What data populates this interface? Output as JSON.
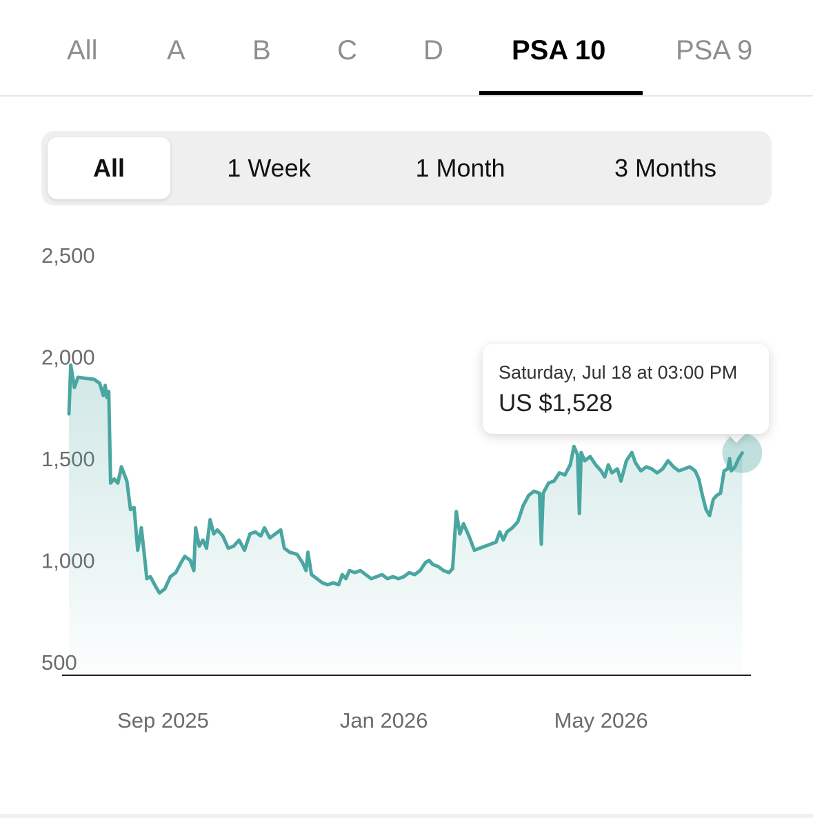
{
  "grade_tabs": [
    {
      "label": "All"
    },
    {
      "label": "A"
    },
    {
      "label": "B"
    },
    {
      "label": "C"
    },
    {
      "label": "D"
    },
    {
      "label": "PSA 10"
    },
    {
      "label": "PSA 9"
    }
  ],
  "active_grade": "PSA 10",
  "range_tabs": [
    {
      "label": "All"
    },
    {
      "label": "1 Week"
    },
    {
      "label": "1 Month"
    },
    {
      "label": "3 Months"
    }
  ],
  "active_range": "All",
  "tooltip": {
    "date": "Saturday, Jul 18 at 03:00 PM",
    "value": "US $1,528"
  },
  "colors": {
    "line": "#4aa6a0",
    "active_text": "#000000",
    "inactive_text": "#8e8e8e"
  },
  "chart_data": {
    "type": "area",
    "ylim": [
      500,
      2500
    ],
    "y_ticks": [
      "2,500",
      "2,000",
      "1,500",
      "1,000",
      "500"
    ],
    "y_tick_values": [
      2500,
      2000,
      1500,
      1000,
      500
    ],
    "x_ticks": [
      "Sep 2025",
      "Jan 2026",
      "May 2026"
    ],
    "x_tick_values": [
      "2025-09-01",
      "2026-01-01",
      "2026-05-01"
    ],
    "xlim": [
      "2025-07-11",
      "2026-07-19"
    ],
    "highlight": {
      "x": "2026-07-18",
      "y": 1528
    },
    "series": [
      {
        "points": [
          [
            "2025-07-11",
            1720
          ],
          [
            "2025-07-12",
            1960
          ],
          [
            "2025-07-14",
            1850
          ],
          [
            "2025-07-16",
            1900
          ],
          [
            "2025-07-20",
            1895
          ],
          [
            "2025-07-25",
            1890
          ],
          [
            "2025-07-28",
            1870
          ],
          [
            "2025-07-30",
            1810
          ],
          [
            "2025-07-31",
            1860
          ],
          [
            "2025-08-01",
            1800
          ],
          [
            "2025-08-02",
            1830
          ],
          [
            "2025-08-03",
            1380
          ],
          [
            "2025-08-05",
            1400
          ],
          [
            "2025-08-07",
            1380
          ],
          [
            "2025-08-09",
            1460
          ],
          [
            "2025-08-12",
            1390
          ],
          [
            "2025-08-14",
            1250
          ],
          [
            "2025-08-16",
            1260
          ],
          [
            "2025-08-18",
            1050
          ],
          [
            "2025-08-20",
            1160
          ],
          [
            "2025-08-22",
            1000
          ],
          [
            "2025-08-23",
            910
          ],
          [
            "2025-08-25",
            920
          ],
          [
            "2025-08-28",
            870
          ],
          [
            "2025-08-30",
            840
          ],
          [
            "2025-09-02",
            860
          ],
          [
            "2025-09-05",
            920
          ],
          [
            "2025-09-08",
            940
          ],
          [
            "2025-09-11",
            990
          ],
          [
            "2025-09-13",
            1020
          ],
          [
            "2025-09-16",
            1000
          ],
          [
            "2025-09-18",
            950
          ],
          [
            "2025-09-19",
            1160
          ],
          [
            "2025-09-21",
            1070
          ],
          [
            "2025-09-23",
            1100
          ],
          [
            "2025-09-25",
            1060
          ],
          [
            "2025-09-27",
            1200
          ],
          [
            "2025-09-29",
            1130
          ],
          [
            "2025-10-01",
            1150
          ],
          [
            "2025-10-04",
            1120
          ],
          [
            "2025-10-07",
            1060
          ],
          [
            "2025-10-10",
            1070
          ],
          [
            "2025-10-13",
            1100
          ],
          [
            "2025-10-16",
            1050
          ],
          [
            "2025-10-19",
            1130
          ],
          [
            "2025-10-22",
            1140
          ],
          [
            "2025-10-25",
            1120
          ],
          [
            "2025-10-27",
            1160
          ],
          [
            "2025-10-30",
            1110
          ],
          [
            "2025-11-02",
            1130
          ],
          [
            "2025-11-05",
            1150
          ],
          [
            "2025-11-07",
            1060
          ],
          [
            "2025-11-10",
            1040
          ],
          [
            "2025-11-14",
            1030
          ],
          [
            "2025-11-17",
            990
          ],
          [
            "2025-11-19",
            950
          ],
          [
            "2025-11-20",
            1040
          ],
          [
            "2025-11-22",
            930
          ],
          [
            "2025-11-25",
            910
          ],
          [
            "2025-11-28",
            890
          ],
          [
            "2025-12-01",
            880
          ],
          [
            "2025-12-04",
            890
          ],
          [
            "2025-12-07",
            880
          ],
          [
            "2025-12-09",
            930
          ],
          [
            "2025-12-11",
            910
          ],
          [
            "2025-12-13",
            950
          ],
          [
            "2025-12-16",
            940
          ],
          [
            "2025-12-19",
            950
          ],
          [
            "2025-12-22",
            930
          ],
          [
            "2025-12-25",
            910
          ],
          [
            "2025-12-28",
            920
          ],
          [
            "2025-12-31",
            930
          ],
          [
            "2026-01-03",
            910
          ],
          [
            "2026-01-06",
            920
          ],
          [
            "2026-01-09",
            910
          ],
          [
            "2026-01-12",
            920
          ],
          [
            "2026-01-15",
            940
          ],
          [
            "2026-01-18",
            930
          ],
          [
            "2026-01-21",
            950
          ],
          [
            "2026-01-24",
            990
          ],
          [
            "2026-01-26",
            1000
          ],
          [
            "2026-01-28",
            980
          ],
          [
            "2026-01-31",
            970
          ],
          [
            "2026-02-03",
            950
          ],
          [
            "2026-02-06",
            940
          ],
          [
            "2026-02-08",
            960
          ],
          [
            "2026-02-10",
            1240
          ],
          [
            "2026-02-12",
            1130
          ],
          [
            "2026-02-14",
            1180
          ],
          [
            "2026-02-17",
            1120
          ],
          [
            "2026-02-20",
            1050
          ],
          [
            "2026-02-23",
            1060
          ],
          [
            "2026-02-26",
            1070
          ],
          [
            "2026-03-01",
            1080
          ],
          [
            "2026-03-04",
            1090
          ],
          [
            "2026-03-06",
            1140
          ],
          [
            "2026-03-08",
            1100
          ],
          [
            "2026-03-10",
            1140
          ],
          [
            "2026-03-13",
            1160
          ],
          [
            "2026-03-16",
            1190
          ],
          [
            "2026-03-19",
            1270
          ],
          [
            "2026-03-22",
            1320
          ],
          [
            "2026-03-25",
            1340
          ],
          [
            "2026-03-28",
            1330
          ],
          [
            "2026-03-29",
            1080
          ],
          [
            "2026-03-30",
            1330
          ],
          [
            "2026-04-02",
            1380
          ],
          [
            "2026-04-05",
            1390
          ],
          [
            "2026-04-08",
            1430
          ],
          [
            "2026-04-11",
            1420
          ],
          [
            "2026-04-14",
            1470
          ],
          [
            "2026-04-16",
            1560
          ],
          [
            "2026-04-18",
            1520
          ],
          [
            "2026-04-19",
            1230
          ],
          [
            "2026-04-20",
            1530
          ],
          [
            "2026-04-22",
            1490
          ],
          [
            "2026-04-25",
            1510
          ],
          [
            "2026-04-28",
            1470
          ],
          [
            "2026-05-01",
            1440
          ],
          [
            "2026-05-03",
            1410
          ],
          [
            "2026-05-05",
            1470
          ],
          [
            "2026-05-07",
            1430
          ],
          [
            "2026-05-10",
            1450
          ],
          [
            "2026-05-12",
            1390
          ],
          [
            "2026-05-15",
            1490
          ],
          [
            "2026-05-18",
            1530
          ],
          [
            "2026-05-20",
            1480
          ],
          [
            "2026-05-23",
            1440
          ],
          [
            "2026-05-26",
            1460
          ],
          [
            "2026-05-29",
            1450
          ],
          [
            "2026-06-01",
            1430
          ],
          [
            "2026-06-04",
            1450
          ],
          [
            "2026-06-07",
            1490
          ],
          [
            "2026-06-10",
            1460
          ],
          [
            "2026-06-13",
            1440
          ],
          [
            "2026-06-16",
            1450
          ],
          [
            "2026-06-19",
            1460
          ],
          [
            "2026-06-22",
            1440
          ],
          [
            "2026-06-24",
            1400
          ],
          [
            "2026-06-26",
            1320
          ],
          [
            "2026-06-28",
            1250
          ],
          [
            "2026-06-30",
            1220
          ],
          [
            "2026-07-02",
            1300
          ],
          [
            "2026-07-04",
            1320
          ],
          [
            "2026-07-06",
            1330
          ],
          [
            "2026-07-08",
            1440
          ],
          [
            "2026-07-10",
            1450
          ],
          [
            "2026-07-11",
            1500
          ],
          [
            "2026-07-12",
            1440
          ],
          [
            "2026-07-14",
            1460
          ],
          [
            "2026-07-16",
            1500
          ],
          [
            "2026-07-18",
            1528
          ]
        ]
      }
    ]
  }
}
